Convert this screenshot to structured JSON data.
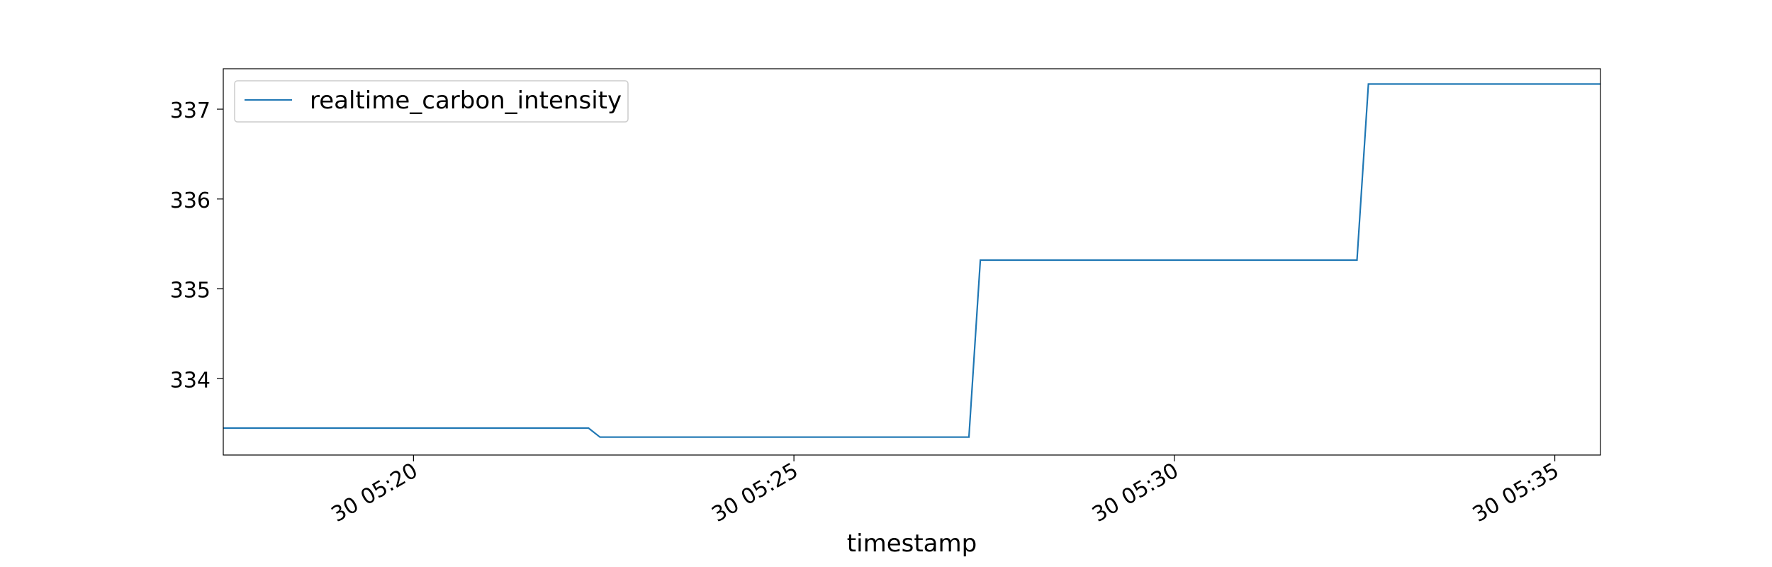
{
  "chart_data": {
    "type": "line",
    "xlabel": "timestamp",
    "ylabel": "",
    "title": "",
    "xlim": [
      -2.5,
      15.6
    ],
    "ylim": [
      333.15,
      337.45
    ],
    "x_ticks": [
      {
        "value": 0,
        "label": "30 05:20"
      },
      {
        "value": 5,
        "label": "30 05:25"
      },
      {
        "value": 10,
        "label": "30 05:30"
      },
      {
        "value": 15,
        "label": "30 05:35"
      }
    ],
    "y_ticks": [
      334,
      335,
      336,
      337
    ],
    "grid": false,
    "legend": {
      "placement": "top-left"
    },
    "series": [
      {
        "name": "realtime_carbon_intensity",
        "color": "#1f77b4",
        "x": [
          -2.5,
          2.3,
          2.45,
          7.3,
          7.45,
          12.4,
          12.55,
          15.6
        ],
        "y": [
          333.45,
          333.45,
          333.35,
          333.35,
          335.32,
          335.32,
          337.28,
          337.28
        ]
      }
    ]
  }
}
